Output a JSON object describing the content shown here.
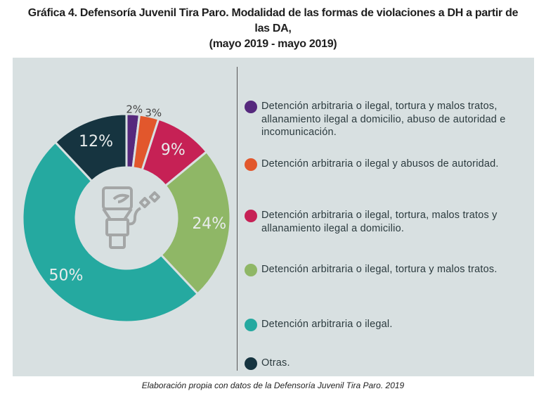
{
  "title_lines": [
    "Gráfica 4. Defensoría Juvenil Tira Paro. Modalidad de las formas de violaciones a DH a partir de",
    "las DA,",
    "(mayo 2019 - mayo 2019)"
  ],
  "footer": "Elaboración propia con datos de la Defensoría Juvenil Tira Paro. 2019",
  "chart_data": {
    "type": "pie",
    "donut": true,
    "title": "Gráfica 4. Defensoría Juvenil Tira Paro. Modalidad de las formas de violaciones a DH a partir de las DA, (mayo 2019 - mayo 2019)",
    "categories": [
      "Detención arbitraria o ilegal, tortura y malos tratos, allanamiento ilegal a domicilio, abuso de autoridad e incomunicación.",
      "Detención arbitraria o ilegal y abusos de autoridad.",
      "Detención arbitraria o ilegal, tortura, malos tratos y allanamiento ilegal a domicilio.",
      "Detención arbitraria o ilegal, tortura y malos tratos.",
      "Detención arbitraria o ilegal.",
      "Otras."
    ],
    "values": [
      2,
      3,
      9,
      24,
      50,
      12
    ],
    "labels": [
      "2%",
      "3%",
      "9%",
      "24%",
      "50%",
      "12%"
    ],
    "colors": [
      "#56297d",
      "#e2572c",
      "#c62155",
      "#8fb766",
      "#25a9a0",
      "#163440"
    ],
    "legend": "right",
    "center_icon": "prisoner-chain-icon"
  }
}
